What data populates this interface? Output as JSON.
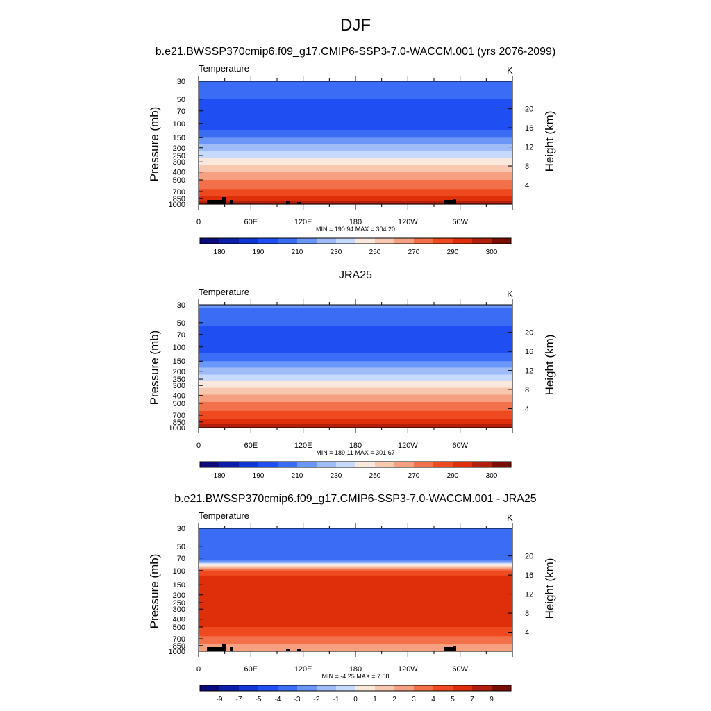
{
  "figure": {
    "title": "DJF",
    "field_label": "Temperature",
    "unit": "K",
    "y_left_label": "Pressure (mb)",
    "y_right_label": "Height (km)",
    "pressure_ticks": [
      "30",
      "50",
      "70",
      "100",
      "150",
      "200",
      "250",
      "300",
      "400",
      "500",
      "700",
      "850",
      "1000"
    ],
    "height_ticks": [
      "20",
      "16",
      "12",
      "8",
      "4"
    ],
    "x_ticks": [
      "0",
      "60E",
      "120E",
      "180",
      "120W",
      "60W"
    ]
  },
  "colors": {
    "temperature_scale": [
      "#0b0b7d",
      "#0d1fa8",
      "#1236d6",
      "#1f4ff2",
      "#3b6cf5",
      "#6a96f7",
      "#9fbcf9",
      "#c8dafb",
      "#fbe8dc",
      "#f8c7b0",
      "#f5a080",
      "#f3714a",
      "#ef4a1f",
      "#de2f0a",
      "#b0200c",
      "#7a0e05"
    ],
    "difference_scale": [
      "#0b0b7d",
      "#0d1fa8",
      "#1236d6",
      "#1f4ff2",
      "#3b6cf5",
      "#6a96f7",
      "#9fbcf9",
      "#c8dafb",
      "#fbe8dc",
      "#f8c7b0",
      "#f5a080",
      "#f3714a",
      "#ef4a1f",
      "#de2f0a",
      "#b0200c",
      "#7a0e05"
    ],
    "topography": "#000000"
  },
  "chart_data": [
    {
      "type": "heatmap",
      "title": "b.e21.BWSSP370cmip6.f09_g17.CMIP6-SSP3-7.0-WACCM.001 (yrs 2076-2099)",
      "field": "Temperature",
      "unit": "K",
      "xlabel": "",
      "ylabel": "Pressure (mb)",
      "ylabel_right": "Height (km)",
      "x_ticks": [
        "0",
        "60E",
        "120E",
        "180",
        "120W",
        "60W"
      ],
      "pressure_levels": [
        30,
        50,
        70,
        100,
        150,
        200,
        250,
        300,
        400,
        500,
        700,
        850,
        1000
      ],
      "stats": "MIN = 190.94  MAX = 304.20",
      "colorbar_labels": [
        "180",
        "190",
        "210",
        "230",
        "250",
        "270",
        "290",
        "300"
      ],
      "profile_by_pressure": [
        {
          "p": 30,
          "band": 4
        },
        {
          "p": 40,
          "band": 4
        },
        {
          "p": 50,
          "band": 3
        },
        {
          "p": 100,
          "band": 3
        },
        {
          "p": 120,
          "band": 4
        },
        {
          "p": 150,
          "band": 5
        },
        {
          "p": 180,
          "band": 6
        },
        {
          "p": 220,
          "band": 7
        },
        {
          "p": 270,
          "band": 8
        },
        {
          "p": 330,
          "band": 9
        },
        {
          "p": 400,
          "band": 10
        },
        {
          "p": 500,
          "band": 11
        },
        {
          "p": 650,
          "band": 12
        },
        {
          "p": 800,
          "band": 13
        },
        {
          "p": 920,
          "band": 14
        }
      ]
    },
    {
      "type": "heatmap",
      "title": "JRA25",
      "field": "Temperature",
      "unit": "K",
      "xlabel": "",
      "ylabel": "Pressure (mb)",
      "ylabel_right": "Height (km)",
      "x_ticks": [
        "0",
        "60E",
        "120E",
        "180",
        "120W",
        "60W"
      ],
      "pressure_levels": [
        30,
        50,
        70,
        100,
        150,
        200,
        250,
        300,
        400,
        500,
        700,
        850,
        1000
      ],
      "stats": "MIN = 189.11  MAX = 301.67",
      "colorbar_labels": [
        "180",
        "190",
        "210",
        "230",
        "250",
        "270",
        "290",
        "300"
      ],
      "profile_by_pressure": [
        {
          "p": 30,
          "band": 5
        },
        {
          "p": 33,
          "band": 4
        },
        {
          "p": 55,
          "band": 3
        },
        {
          "p": 120,
          "band": 4
        },
        {
          "p": 150,
          "band": 5
        },
        {
          "p": 180,
          "band": 6
        },
        {
          "p": 220,
          "band": 7
        },
        {
          "p": 265,
          "band": 8
        },
        {
          "p": 320,
          "band": 9
        },
        {
          "p": 390,
          "band": 10
        },
        {
          "p": 480,
          "band": 11
        },
        {
          "p": 620,
          "band": 12
        },
        {
          "p": 780,
          "band": 13
        },
        {
          "p": 900,
          "band": 14
        }
      ]
    },
    {
      "type": "heatmap",
      "title": "b.e21.BWSSP370cmip6.f09_g17.CMIP6-SSP3-7.0-WACCM.001 - JRA25",
      "field": "Temperature",
      "unit": "K",
      "xlabel": "",
      "ylabel": "Pressure (mb)",
      "ylabel_right": "Height (km)",
      "x_ticks": [
        "0",
        "60E",
        "120E",
        "180",
        "120W",
        "60W"
      ],
      "pressure_levels": [
        30,
        50,
        70,
        100,
        150,
        200,
        250,
        300,
        400,
        500,
        700,
        850,
        1000
      ],
      "stats": "MIN =  -4.25  MAX =   7.08",
      "colorbar_labels": [
        "-9",
        "-7",
        "-5",
        "-4",
        "-3",
        "-2",
        "-1",
        "0",
        "1",
        "2",
        "3",
        "4",
        "5",
        "7",
        "9"
      ],
      "profile_by_pressure": [
        {
          "p": 30,
          "band": 4
        },
        {
          "p": 75,
          "band": 5
        },
        {
          "p": 80,
          "band": 7
        },
        {
          "p": 84,
          "band": 8
        },
        {
          "p": 88,
          "band": 9
        },
        {
          "p": 92,
          "band": 10
        },
        {
          "p": 96,
          "band": 11
        },
        {
          "p": 100,
          "band": 12
        },
        {
          "p": 115,
          "band": 13
        },
        {
          "p": 500,
          "band": 12
        },
        {
          "p": 650,
          "band": 11
        },
        {
          "p": 820,
          "band": 10
        }
      ]
    }
  ]
}
